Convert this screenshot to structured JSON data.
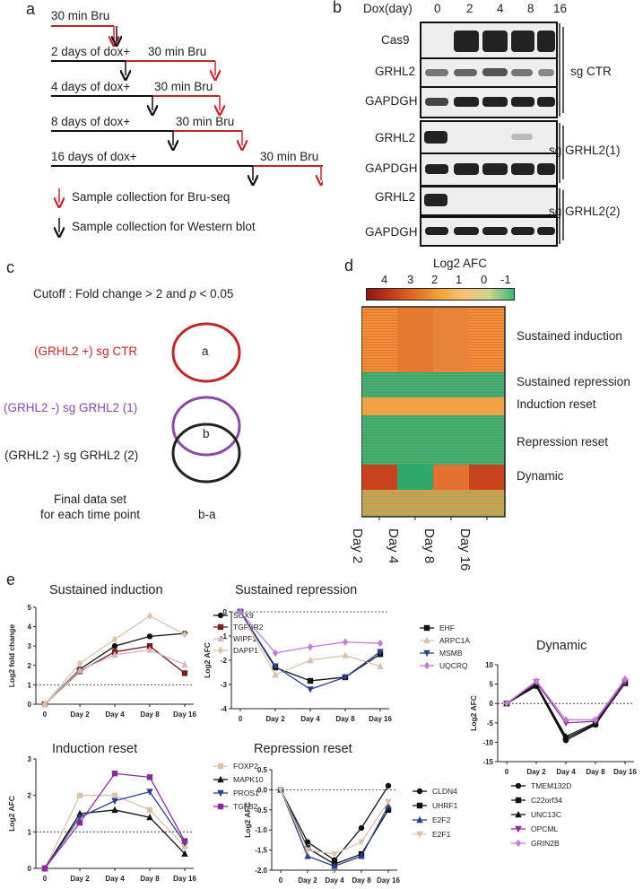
{
  "panels": {
    "a": "a",
    "b": "b",
    "c": "c",
    "d": "d",
    "e": "e"
  },
  "a": {
    "rows": [
      {
        "label": "30 min Bru"
      },
      {
        "label": "2 days of dox+",
        "bru": "30 min Bru"
      },
      {
        "label": "4 days of dox+",
        "bru": "30 min Bru"
      },
      {
        "label": "8 days of dox+",
        "bru": "30 min Bru"
      },
      {
        "label": "16 days of dox+",
        "bru": "30 min Bru"
      }
    ],
    "legend_red": "Sample collection for Bru-seq",
    "legend_black": "Sample collection for Western blot",
    "colors": {
      "red": "#c0272d",
      "black": "#111111"
    }
  },
  "b": {
    "header": "Dox(day)",
    "days": [
      "0",
      "2",
      "4",
      "8",
      "16"
    ],
    "groups": [
      {
        "name": "sg CTR",
        "rows": [
          "Cas9",
          "GRHL2",
          "GAPDGH"
        ]
      },
      {
        "name": "sg GRHL2(1)",
        "rows": [
          "GRHL2",
          "GAPDGH"
        ]
      },
      {
        "name": "sg GRHL2(2)",
        "rows": [
          "GRHL2",
          "GAPDGH"
        ]
      }
    ]
  },
  "c": {
    "cutoff_prefix": "Cutoff : Fold change > 2 and ",
    "cutoff_p": "p",
    "cutoff_suffix": " < 0.05",
    "set1": "(GRHL2 +)  sg CTR",
    "set2": "(GRHL2 -)  sg GRHL2 (1)",
    "set3": "(GRHL2 -)  sg GRHL2 (2)",
    "circle_a": "a",
    "circle_b": "b",
    "final1": "Final data set",
    "final2": "for each time point",
    "formula": "b-a",
    "colors": {
      "set1": "#c0272d",
      "set2": "#8b4aa8",
      "set3": "#222222"
    }
  },
  "d": {
    "scale_title": "Log2 AFC",
    "scale_ticks": [
      "4",
      "3",
      "2",
      "1",
      "0",
      "-1"
    ],
    "clusters": [
      "Sustained induction",
      "Sustained repression",
      "Induction reset",
      "Repression reset",
      "Dynamic"
    ],
    "columns": [
      "Day 2",
      "Day 4",
      "Day 8",
      "Day 16"
    ]
  },
  "chart_data": [
    {
      "type": "line",
      "id": "sustained-induction",
      "title": "Sustained induction",
      "ylabel": "Log2 fold change",
      "ylim": [
        0,
        5
      ],
      "yticks": [
        "0",
        "1",
        "2",
        "3",
        "4",
        "5"
      ],
      "categories": [
        "0",
        "Day 2",
        "Day 4",
        "Day 8",
        "Day 16"
      ],
      "reference_line": 1,
      "series": [
        {
          "name": "SOX9",
          "marker": "circle",
          "color": "#111111",
          "values": [
            0,
            1.8,
            3.0,
            3.5,
            3.65
          ]
        },
        {
          "name": "TGFBR2",
          "marker": "square",
          "color": "#7a1f1f",
          "values": [
            0,
            1.7,
            2.7,
            3.0,
            1.6
          ]
        },
        {
          "name": "WIPF1",
          "marker": "triangle",
          "color": "#d4b7c6",
          "values": [
            0,
            1.75,
            2.55,
            2.8,
            2.05
          ]
        },
        {
          "name": "DAPP1",
          "marker": "diamond",
          "color": "#d9c3ab",
          "values": [
            0,
            2.1,
            3.35,
            4.55,
            3.6
          ]
        }
      ]
    },
    {
      "type": "line",
      "id": "sustained-repression",
      "title": "Sustained repression",
      "ylabel": "Log2 AFC",
      "ylim": [
        -4,
        0
      ],
      "yticks": [
        "0",
        "-1",
        "-2",
        "-3",
        "-4"
      ],
      "categories": [
        "0",
        "Day 2",
        "Day 4",
        "Day 8",
        "Day 16"
      ],
      "reference_line": 0,
      "series": [
        {
          "name": "EHF",
          "marker": "square",
          "color": "#111111",
          "values": [
            0,
            -2.3,
            -2.85,
            -2.7,
            -1.75
          ]
        },
        {
          "name": "ARPC1A",
          "marker": "triangle",
          "color": "#d9c3ab",
          "values": [
            0,
            -2.6,
            -2.0,
            -1.8,
            -2.25
          ]
        },
        {
          "name": "MSMB",
          "marker": "triangle-down",
          "color": "#2d3e8f",
          "values": [
            0,
            -2.25,
            -3.2,
            -2.7,
            -1.65
          ]
        },
        {
          "name": "UQCRQ",
          "marker": "diamond",
          "color": "#c27bd6",
          "values": [
            0,
            -1.7,
            -1.45,
            -1.25,
            -1.3
          ]
        }
      ]
    },
    {
      "type": "line",
      "id": "dynamic",
      "title": "Dynamic",
      "ylabel": "Log2 AFC",
      "ylim": [
        -15,
        10
      ],
      "yticks": [
        "10",
        "5",
        "0",
        "-5",
        "-10",
        "-15"
      ],
      "categories": [
        "0",
        "Day 2",
        "Day 4",
        "Day 8",
        "Day 16"
      ],
      "reference_line": 0,
      "series": [
        {
          "name": "TMEM132D",
          "marker": "circle",
          "color": "#111111",
          "values": [
            0,
            4.5,
            -9.5,
            -5.5,
            5.5
          ]
        },
        {
          "name": "C22orf34",
          "marker": "square",
          "color": "#111111",
          "values": [
            0,
            4.6,
            -9,
            -5.3,
            5.2
          ]
        },
        {
          "name": "UNC13C",
          "marker": "triangle",
          "color": "#111111",
          "values": [
            0,
            5.0,
            -8.5,
            -5.0,
            5.8
          ]
        },
        {
          "name": "OPCML",
          "marker": "triangle-down",
          "color": "#8a2a9e",
          "values": [
            0,
            5.5,
            -5,
            -4.6,
            5.5
          ]
        },
        {
          "name": "GRIN2B",
          "marker": "diamond",
          "color": "#c27bd6",
          "values": [
            0,
            5.8,
            -4.2,
            -4.2,
            6.3
          ]
        }
      ]
    },
    {
      "type": "line",
      "id": "induction-reset",
      "title": "Induction reset",
      "ylabel": "Log2 AFC",
      "ylim": [
        0,
        3
      ],
      "yticks": [
        "0",
        "1",
        "2",
        "3"
      ],
      "categories": [
        "0",
        "Day 2",
        "Day 4",
        "Day 8",
        "Day 16"
      ],
      "reference_line": 1,
      "series": [
        {
          "name": "FOXP2",
          "marker": "square",
          "color": "#d9c3ab",
          "values": [
            0,
            2.0,
            2.0,
            1.6,
            0.6
          ]
        },
        {
          "name": "MAPK10",
          "marker": "triangle",
          "color": "#111111",
          "values": [
            0,
            1.5,
            1.6,
            1.4,
            0.4
          ]
        },
        {
          "name": "PROS1",
          "marker": "triangle-down",
          "color": "#2d3e8f",
          "values": [
            0,
            1.4,
            1.85,
            2.1,
            0.7
          ]
        },
        {
          "name": "TGFB2",
          "marker": "square",
          "color": "#8a2a9e",
          "values": [
            0,
            1.25,
            2.6,
            2.5,
            0.75
          ]
        }
      ]
    },
    {
      "type": "line",
      "id": "repression-reset",
      "title": "Repression reset",
      "ylabel": "Log2 AFC",
      "ylim": [
        -2.0,
        0.5
      ],
      "yticks": [
        "0.5",
        "0.0",
        "-0.5",
        "-1.0",
        "-1.5",
        "-2.0"
      ],
      "categories": [
        "0",
        "Day 2",
        "Day 4",
        "Day 8",
        "Day 16"
      ],
      "reference_line": 0,
      "series": [
        {
          "name": "CLDN4",
          "marker": "circle",
          "color": "#111111",
          "values": [
            0,
            -1.3,
            -1.75,
            -0.95,
            0.1
          ]
        },
        {
          "name": "UHRF1",
          "marker": "square",
          "color": "#111111",
          "values": [
            0,
            -1.45,
            -1.85,
            -1.6,
            -0.5
          ]
        },
        {
          "name": "E2F2",
          "marker": "triangle",
          "color": "#2d3e8f",
          "values": [
            0,
            -1.65,
            -1.9,
            -1.65,
            -0.4
          ]
        },
        {
          "name": "E2F1",
          "marker": "triangle-down",
          "color": "#d9c3ab",
          "values": [
            0,
            -1.5,
            -1.6,
            -1.3,
            -0.3
          ]
        }
      ]
    }
  ]
}
